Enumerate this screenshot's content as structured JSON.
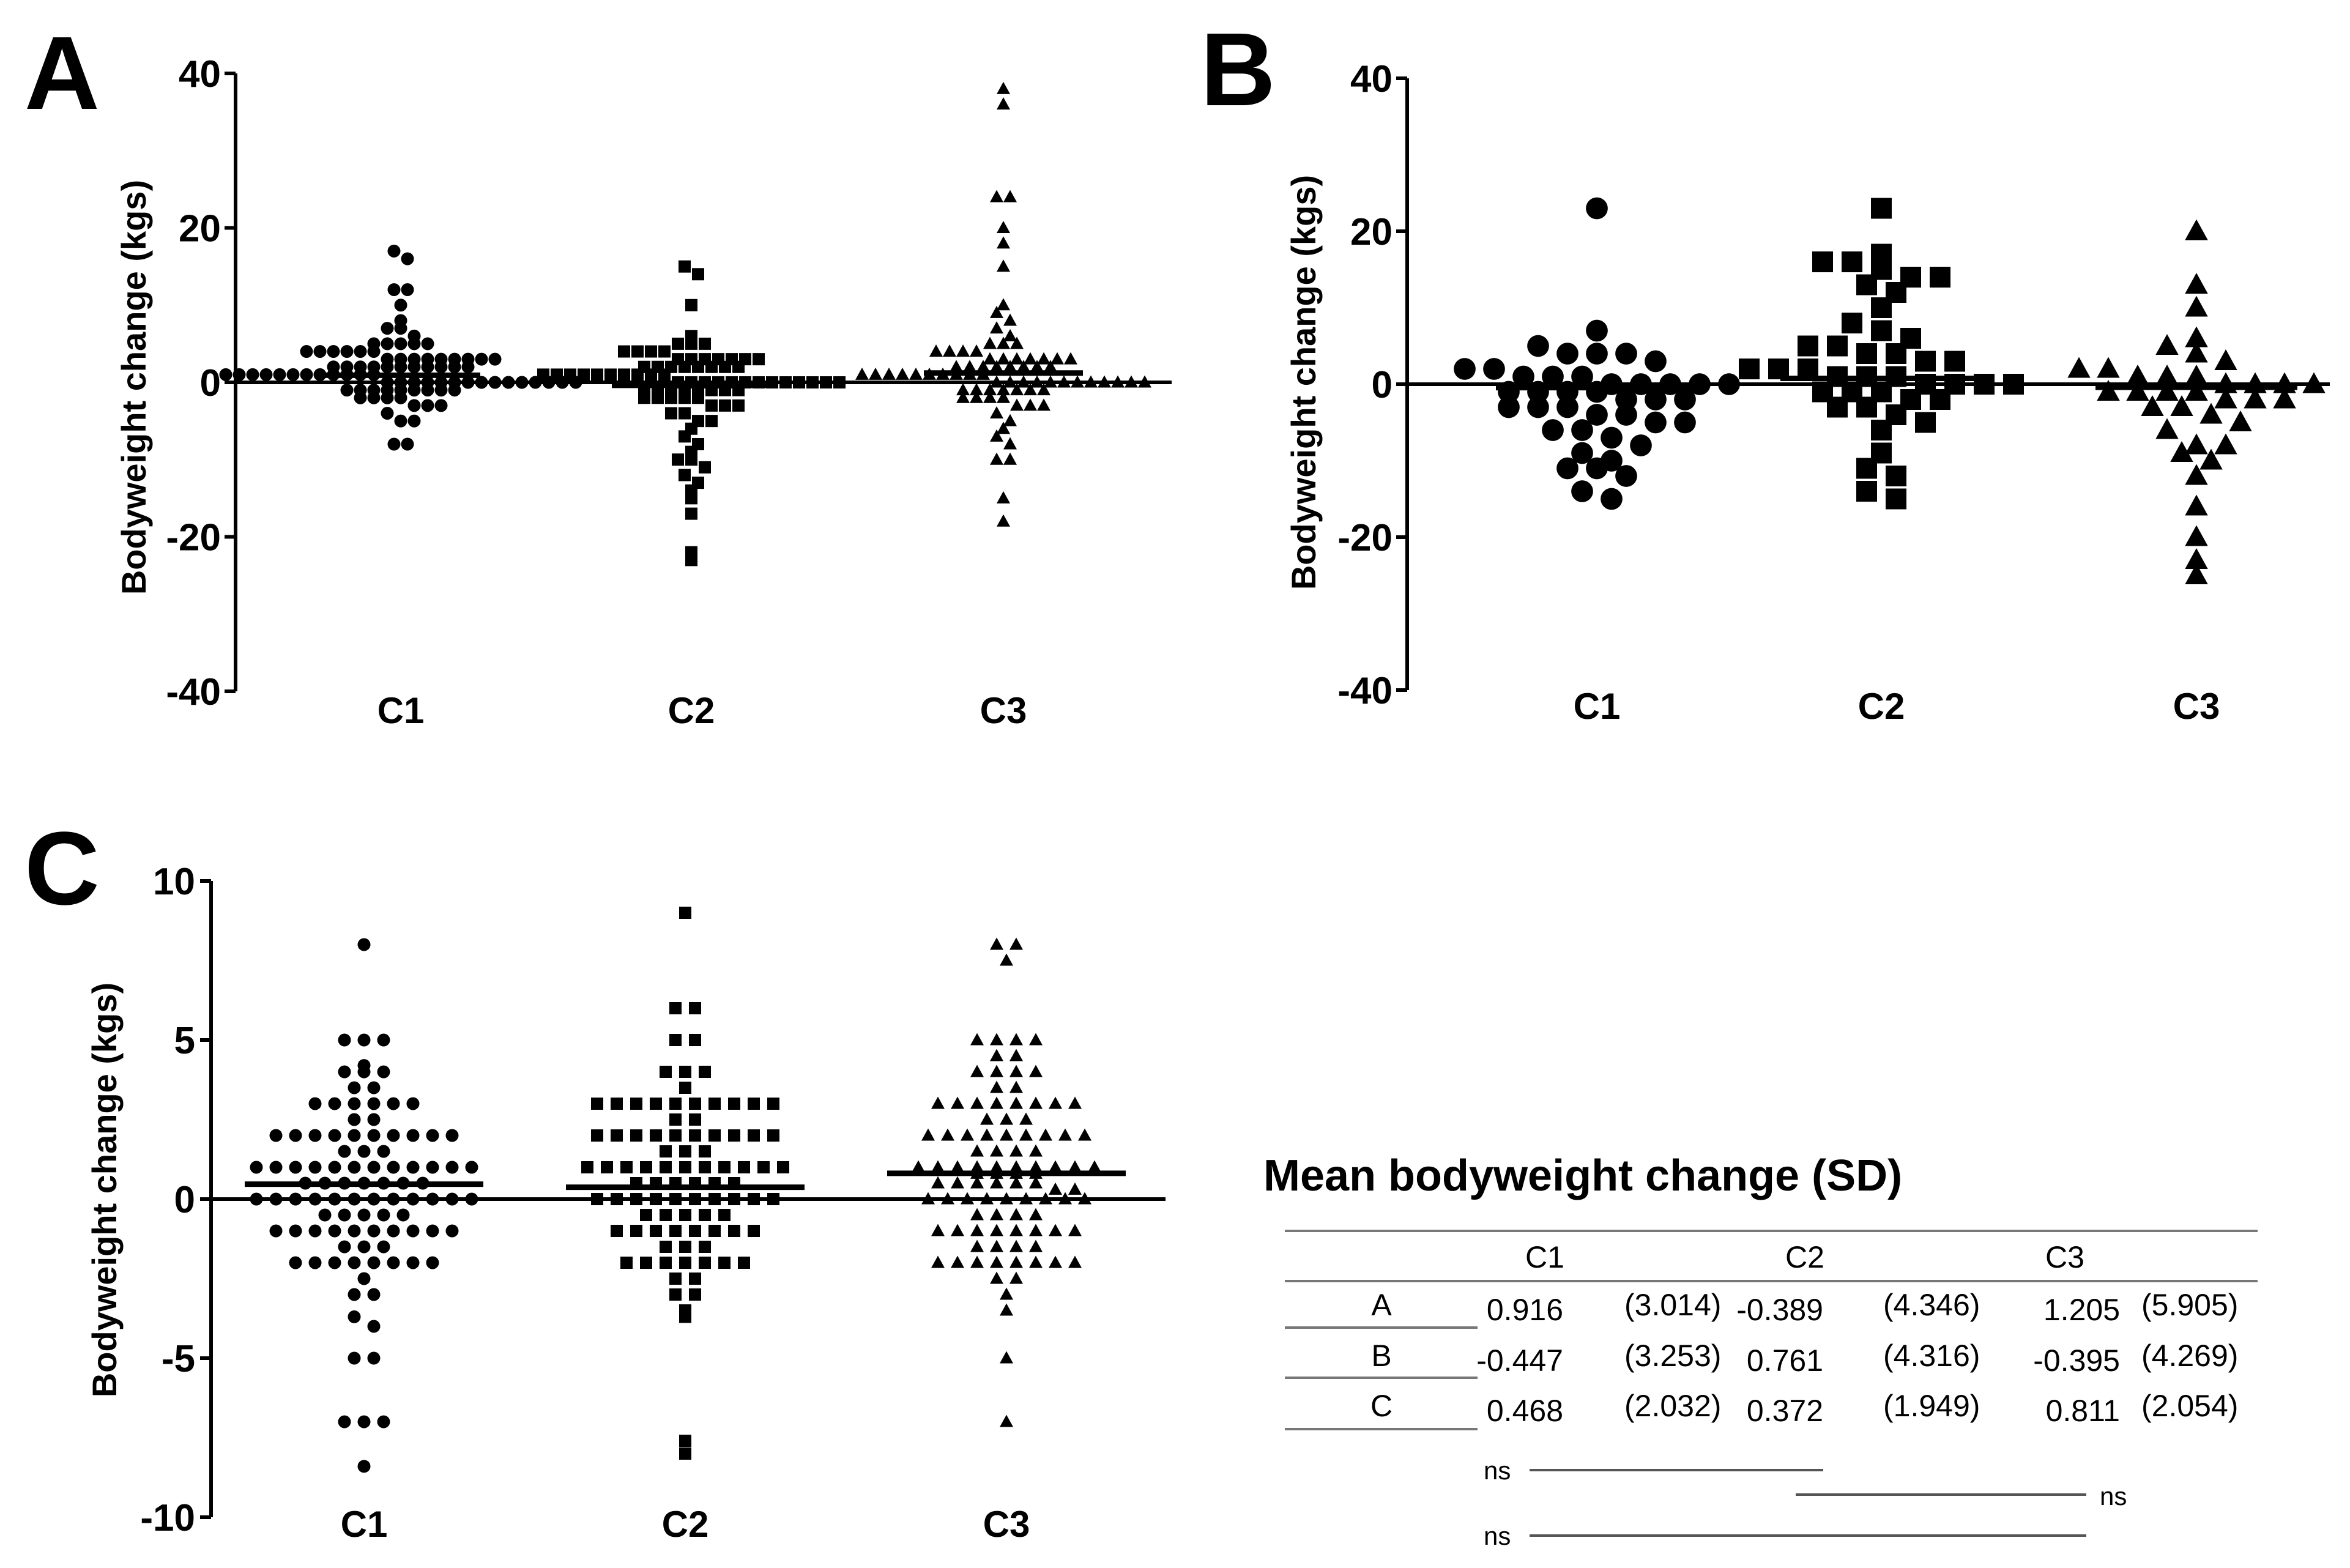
{
  "chart_data": [
    {
      "panel": "A",
      "type": "scatter",
      "subtype": "dot-strip-with-mean",
      "ylabel": "Bodyweight change (kgs)",
      "ylim": [
        -40,
        40
      ],
      "yticks": [
        -40,
        -20,
        0,
        20,
        40
      ],
      "categories": [
        "C1",
        "C2",
        "C3"
      ],
      "markers": [
        "circle",
        "square",
        "triangle"
      ],
      "means": [
        0.916,
        -0.389,
        1.205
      ],
      "series": [
        {
          "name": "C1",
          "values": [
            17,
            16,
            12,
            12,
            10,
            8,
            7,
            7,
            6,
            5,
            5,
            5,
            5,
            5,
            4,
            4,
            4,
            4,
            4,
            4,
            3,
            3,
            3,
            3,
            3,
            3,
            3,
            3,
            3,
            2,
            2,
            2,
            2,
            2,
            2,
            2,
            2,
            2,
            2,
            2,
            1,
            1,
            1,
            1,
            1,
            1,
            1,
            1,
            1,
            1,
            1,
            1,
            0,
            0,
            0,
            0,
            0,
            0,
            0,
            0,
            0,
            0,
            0,
            0,
            0,
            0,
            0,
            -1,
            -1,
            -1,
            -1,
            -1,
            -1,
            -1,
            -1,
            -1,
            -2,
            -2,
            -2,
            -2,
            -3,
            -3,
            -3,
            -4,
            -5,
            -5,
            -8,
            -8
          ]
        },
        {
          "name": "C2",
          "values": [
            15,
            14,
            10,
            6,
            5,
            5,
            5,
            4,
            4,
            4,
            4,
            3,
            3,
            3,
            3,
            3,
            3,
            3,
            2,
            2,
            2,
            2,
            2,
            2,
            2,
            2,
            1,
            1,
            1,
            1,
            1,
            1,
            1,
            1,
            1,
            1,
            0,
            0,
            0,
            0,
            0,
            0,
            0,
            0,
            0,
            0,
            0,
            0,
            0,
            -1,
            -1,
            -1,
            -1,
            -1,
            -1,
            -1,
            -1,
            -2,
            -2,
            -2,
            -2,
            -2,
            -3,
            -3,
            -3,
            -4,
            -4,
            -5,
            -5,
            -6,
            -7,
            -8,
            -9,
            -10,
            -10,
            -11,
            -12,
            -13,
            -14,
            -15,
            -17,
            -22,
            -23
          ]
        },
        {
          "name": "C3",
          "values": [
            38,
            36,
            24,
            24,
            20,
            18,
            15,
            10,
            9,
            8,
            7,
            6,
            5,
            5,
            5,
            4,
            4,
            4,
            4,
            3,
            3,
            3,
            3,
            3,
            3,
            3,
            2,
            2,
            2,
            2,
            2,
            2,
            2,
            2,
            1,
            1,
            1,
            1,
            1,
            1,
            1,
            1,
            1,
            1,
            0,
            0,
            0,
            0,
            0,
            0,
            0,
            0,
            0,
            0,
            0,
            0,
            -1,
            -1,
            -1,
            -1,
            -1,
            -1,
            -1,
            -2,
            -2,
            -2,
            -2,
            -3,
            -3,
            -3,
            -4,
            -5,
            -6,
            -7,
            -8,
            -10,
            -10,
            -15,
            -18
          ]
        }
      ]
    },
    {
      "panel": "B",
      "type": "scatter",
      "subtype": "dot-strip-with-mean",
      "ylabel": "Bodyweight change (kgs)",
      "ylim": [
        -40,
        40
      ],
      "yticks": [
        -40,
        -20,
        0,
        20,
        40
      ],
      "categories": [
        "C1",
        "C2",
        "C3"
      ],
      "markers": [
        "circle",
        "square",
        "triangle"
      ],
      "means": [
        -0.447,
        0.761,
        -0.395
      ],
      "series": [
        {
          "name": "C1",
          "values": [
            23,
            7,
            5,
            4,
            4,
            4,
            3,
            2,
            2,
            1,
            1,
            1,
            0,
            0,
            0,
            0,
            0,
            -1,
            -1,
            -1,
            -1,
            -2,
            -2,
            -2,
            -3,
            -3,
            -3,
            -4,
            -4,
            -5,
            -5,
            -6,
            -6,
            -7,
            -8,
            -9,
            -10,
            -11,
            -11,
            -12,
            -14,
            -15
          ]
        },
        {
          "name": "C2",
          "values": [
            23,
            17,
            16,
            16,
            15,
            14,
            14,
            13,
            12,
            10,
            8,
            7,
            6,
            5,
            5,
            4,
            4,
            3,
            3,
            2,
            2,
            2,
            1,
            1,
            1,
            0,
            0,
            0,
            0,
            -1,
            -1,
            -1,
            -2,
            -2,
            -3,
            -3,
            -4,
            -5,
            -6,
            -9,
            -11,
            -12,
            -14,
            -15
          ]
        },
        {
          "name": "C3",
          "values": [
            20,
            13,
            10,
            6,
            5,
            4,
            3,
            2,
            2,
            1,
            1,
            1,
            0,
            0,
            0,
            0,
            -1,
            -1,
            -1,
            -1,
            -2,
            -2,
            -2,
            -3,
            -3,
            -4,
            -5,
            -6,
            -8,
            -8,
            -9,
            -10,
            -12,
            -16,
            -20,
            -23,
            -25
          ]
        }
      ]
    },
    {
      "panel": "C",
      "type": "scatter",
      "subtype": "dot-strip-with-mean",
      "ylabel": "Bodyweight change (kgs)",
      "ylim": [
        -10,
        10
      ],
      "yticks": [
        -10,
        -5,
        0,
        5,
        10
      ],
      "categories": [
        "C1",
        "C2",
        "C3"
      ],
      "markers": [
        "circle",
        "square",
        "triangle"
      ],
      "means": [
        0.468,
        0.372,
        0.811
      ],
      "series": [
        {
          "name": "C1",
          "values": [
            8,
            5,
            5,
            5,
            4.2,
            4,
            4,
            4,
            3.5,
            3.5,
            3,
            3,
            3,
            3,
            3,
            3,
            2.5,
            2.5,
            2,
            2,
            2,
            2,
            2,
            2,
            2,
            2,
            2,
            2,
            1.5,
            1.5,
            1.5,
            1,
            1,
            1,
            1,
            1,
            1,
            1,
            1,
            1,
            1,
            1,
            1,
            0.5,
            0.5,
            0.5,
            0.5,
            0.5,
            0.5,
            0.5,
            0,
            0,
            0,
            0,
            0,
            0,
            0,
            0,
            0,
            0,
            0,
            0,
            -0.5,
            -0.5,
            -0.5,
            -0.5,
            -0.5,
            -1,
            -1,
            -1,
            -1,
            -1,
            -1,
            -1,
            -1,
            -1,
            -1,
            -1.5,
            -1.5,
            -1.5,
            -2,
            -2,
            -2,
            -2,
            -2,
            -2,
            -2,
            -2,
            -2.5,
            -3,
            -3,
            -3.7,
            -4,
            -5,
            -5,
            -7,
            -7,
            -7,
            -8.4
          ]
        },
        {
          "name": "C2",
          "values": [
            9,
            6,
            6,
            5,
            5,
            4,
            4,
            4,
            3.5,
            3,
            3,
            3,
            3,
            3,
            3,
            3,
            3,
            3,
            3,
            2.5,
            2.5,
            2,
            2,
            2,
            2,
            2,
            2,
            2,
            2,
            2,
            2,
            1.5,
            1.5,
            1.5,
            1,
            1,
            1,
            1,
            1,
            1,
            1,
            1,
            1,
            1,
            1,
            0.5,
            0.5,
            0.5,
            0.5,
            0.5,
            0.5,
            0,
            0,
            0,
            0,
            0,
            0,
            0,
            0,
            0,
            0,
            -0.5,
            -0.5,
            -0.5,
            -0.5,
            -0.5,
            -1,
            -1,
            -1,
            -1,
            -1,
            -1,
            -1,
            -1,
            -1.5,
            -1.5,
            -1.5,
            -2,
            -2,
            -2,
            -2,
            -2,
            -2,
            -2,
            -2.5,
            -2.5,
            -3,
            -3,
            -3.5,
            -3.7,
            -7.6,
            -8
          ]
        },
        {
          "name": "C3",
          "values": [
            8,
            8,
            7.5,
            5,
            5,
            5,
            5,
            4.5,
            4.5,
            4,
            4,
            4,
            4,
            3.5,
            3.5,
            3,
            3,
            3,
            3,
            3,
            3,
            3,
            3,
            2.5,
            2.5,
            2.5,
            2,
            2,
            2,
            2,
            2,
            2,
            2,
            2,
            2,
            1.5,
            1.5,
            1.5,
            1.5,
            1,
            1,
            1,
            1,
            1,
            1,
            1,
            1,
            1,
            1,
            0.8,
            0.8,
            0.8,
            0.8,
            0.5,
            0.5,
            0.5,
            0.5,
            0.5,
            0.5,
            0.3,
            0.3,
            0,
            0,
            0,
            0,
            0,
            0,
            0,
            0,
            0,
            -0.5,
            -0.5,
            -0.5,
            -0.5,
            -1,
            -1,
            -1,
            -1,
            -1,
            -1,
            -1,
            -1,
            -1.5,
            -1.5,
            -1.5,
            -1.5,
            -2,
            -2,
            -2,
            -2,
            -2,
            -2,
            -2,
            -2,
            -2.5,
            -2.5,
            -3,
            -3.5,
            -5,
            -7
          ]
        }
      ]
    }
  ],
  "summary_table": {
    "title": "Mean bodyweight change (SD)",
    "columns": [
      "C1",
      "C2",
      "C3"
    ],
    "rows": [
      {
        "label": "A",
        "cells": [
          {
            "mean": "0.916",
            "sd": "(3.014)"
          },
          {
            "mean": "-0.389",
            "sd": "(4.346)"
          },
          {
            "mean": "1.205",
            "sd": "(5.905)"
          }
        ]
      },
      {
        "label": "B",
        "cells": [
          {
            "mean": "-0.447",
            "sd": "(3.253)"
          },
          {
            "mean": "0.761",
            "sd": "(4.316)"
          },
          {
            "mean": "-0.395",
            "sd": "(4.269)"
          }
        ]
      },
      {
        "label": "C",
        "cells": [
          {
            "mean": "0.468",
            "sd": "(2.032)"
          },
          {
            "mean": "0.372",
            "sd": "(1.949)"
          },
          {
            "mean": "0.811",
            "sd": "(2.054)"
          }
        ]
      }
    ],
    "significance": [
      {
        "label": "ns",
        "from": "C1",
        "to": "C2"
      },
      {
        "label": "ns",
        "from": "C2",
        "to": "C3"
      },
      {
        "label": "ns",
        "from": "C1",
        "to": "C3"
      }
    ]
  }
}
